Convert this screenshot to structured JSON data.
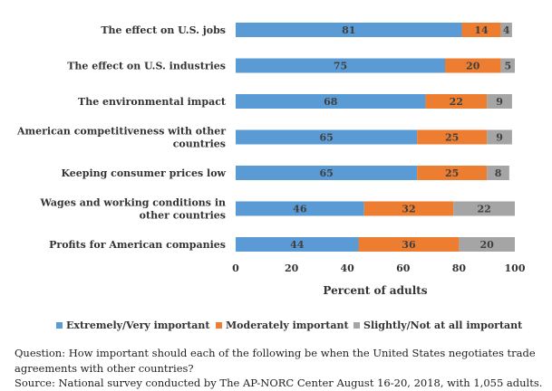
{
  "chart_data": {
    "type": "bar",
    "orientation": "horizontal",
    "stacked": true,
    "categories": [
      "The effect on U.S. jobs",
      "The effect on U.S. industries",
      "The environmental impact",
      "American competitiveness with other countries",
      "Keeping consumer prices low",
      "Wages and working conditions in other countries",
      "Profits for American companies"
    ],
    "series": [
      {
        "name": "Extremely/Very important",
        "color": "#5b9bd5",
        "values": [
          81,
          75,
          68,
          65,
          65,
          46,
          44
        ]
      },
      {
        "name": "Moderately important",
        "color": "#ed7d31",
        "values": [
          14,
          20,
          22,
          25,
          25,
          32,
          36
        ]
      },
      {
        "name": "Slightly/Not at all important",
        "color": "#a5a5a5",
        "values": [
          4,
          5,
          9,
          9,
          8,
          22,
          20
        ]
      }
    ],
    "xlabel": "Percent of adults",
    "xlim": [
      0,
      100
    ],
    "xticks": [
      0,
      20,
      40,
      60,
      80,
      100
    ],
    "grid": false,
    "legend_position": "bottom"
  },
  "notes": {
    "question": "Question: How important should each of the following be when the United States negotiates trade agreements with other countries?",
    "source": "Source: National survey conducted by The AP-NORC Center August 16-20, 2018, with 1,055 adults."
  }
}
